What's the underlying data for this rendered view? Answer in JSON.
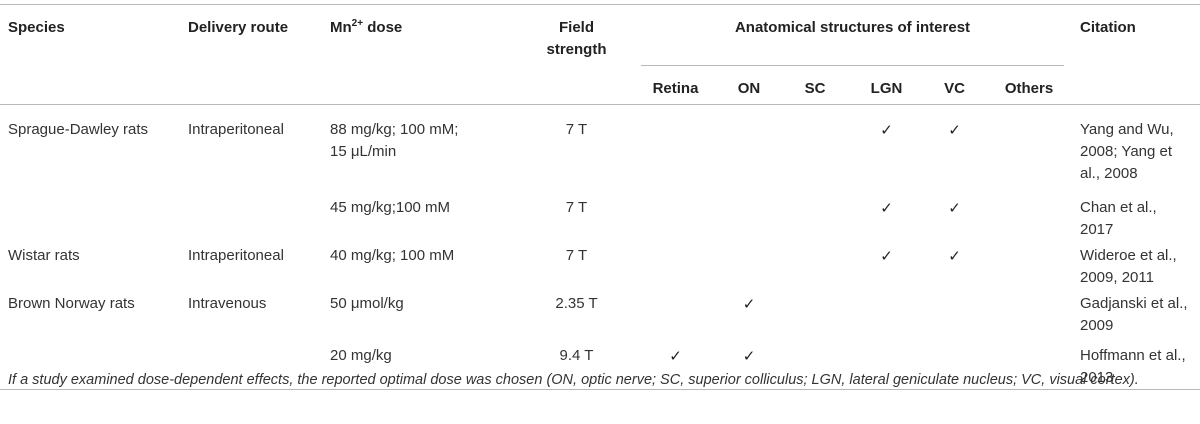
{
  "headers": {
    "species": "Species",
    "route": "Delivery route",
    "dose_prefix": "Mn",
    "dose_sup": "2+",
    "dose_suffix": " dose",
    "field": "Field strength",
    "anatomical_group": "Anatomical structures of interest",
    "citation": "Citation",
    "sub": [
      "Retina",
      "ON",
      "SC",
      "LGN",
      "VC",
      "Others"
    ]
  },
  "check_mark": "✓",
  "rows": [
    {
      "species": "Sprague-Dawley rats",
      "route": "Intraperitoneal",
      "dose_line1": "88 mg/kg; 100 mM;",
      "dose_line2": "15 μL/min",
      "field": "7 T",
      "checks": [
        false,
        false,
        false,
        true,
        true,
        false
      ],
      "citation": "Yang and Wu, 2008; Yang et al., 2008"
    },
    {
      "species": "",
      "route": "",
      "dose_line1": "45 mg/kg;100 mM",
      "dose_line2": "",
      "field": "7 T",
      "checks": [
        false,
        false,
        false,
        true,
        true,
        false
      ],
      "citation": "Chan et al., 2017"
    },
    {
      "species": "Wistar rats",
      "route": "Intraperitoneal",
      "dose_line1": "40 mg/kg; 100 mM",
      "dose_line2": "",
      "field": "7 T",
      "checks": [
        false,
        false,
        false,
        true,
        true,
        false
      ],
      "citation": "Wideroe et al., 2009, 2011"
    },
    {
      "species": "Brown Norway rats",
      "route": "Intravenous",
      "dose_line1": "50 μmol/kg",
      "dose_line2": "",
      "field": "2.35 T",
      "checks": [
        false,
        true,
        false,
        false,
        false,
        false
      ],
      "citation": "Gadjanski et al., 2009"
    },
    {
      "species": "",
      "route": "",
      "dose_line1": "20 mg/kg",
      "dose_line2": "",
      "field": "9.4 T",
      "checks": [
        true,
        true,
        false,
        false,
        false,
        false
      ],
      "citation": "Hoffmann et al., 2013"
    }
  ],
  "footnote": "If a study examined dose-dependent effects, the reported optimal dose was chosen (ON, optic nerve; SC, superior colliculus; LGN, lateral geniculate nucleus; VC, visual cortex)."
}
